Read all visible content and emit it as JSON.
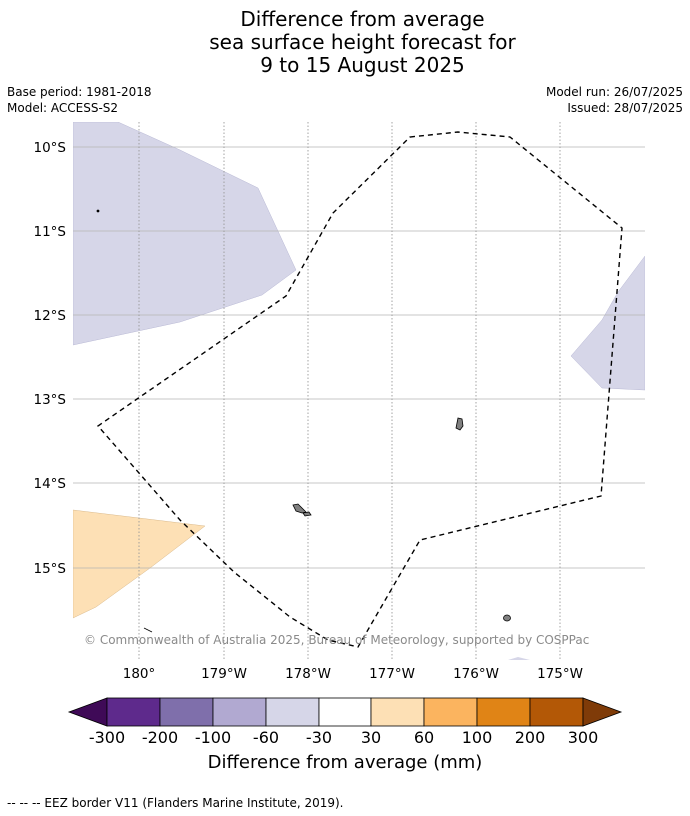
{
  "title": {
    "line1": "Difference from average",
    "line2": "sea surface height forecast for",
    "line3": "9 to 15 August 2025"
  },
  "meta": {
    "base_period": "Base period: 1981-2018",
    "model": "Model: ACCESS-S2",
    "model_run": "Model run: 26/07/2025",
    "issued": "Issued: 28/07/2025"
  },
  "map": {
    "latitude_labels": [
      "10°S",
      "11°S",
      "12°S",
      "13°S",
      "14°S",
      "15°S"
    ],
    "longitude_labels": [
      "180°",
      "179°W",
      "178°W",
      "177°W",
      "176°W",
      "175°W"
    ],
    "copyright": "© Commonwealth of Australia 2025, Bureau of Meteorology, supported by COSPPac",
    "colors": {
      "light_purple": "#d6d6e8",
      "light_orange": "#fde0b5",
      "gridline": "#b5b5b5",
      "land": "#808080"
    }
  },
  "colorbar": {
    "ticks": [
      "-300",
      "-200",
      "-100",
      "-60",
      "-30",
      "30",
      "60",
      "100",
      "200",
      "300"
    ],
    "label": "Difference from average (mm)",
    "colors": [
      "#3f0a57",
      "#5e2a8c",
      "#7f6fab",
      "#b1a9d1",
      "#d6d6e8",
      "#ffffff",
      "#fde0b5",
      "#fbb45f",
      "#e08416",
      "#b35806",
      "#7f3b08"
    ]
  },
  "footnote": "--  --  -- EEZ border V11 (Flanders Marine Institute, 2019)."
}
